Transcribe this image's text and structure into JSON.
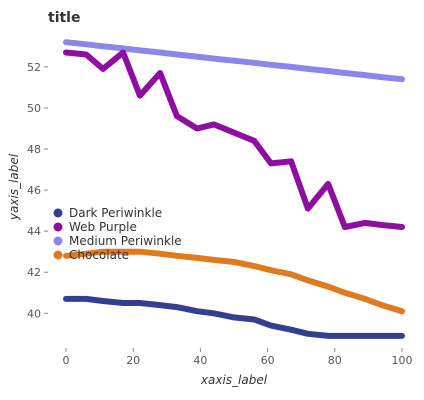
{
  "chart_data": {
    "type": "area",
    "title": "title",
    "xlabel": "xaxis_label",
    "ylabel": "yaxis_label",
    "xlim": [
      0,
      100
    ],
    "ylim": [
      38.7,
      53.6
    ],
    "x_ticks": [
      0,
      20,
      40,
      60,
      80,
      100
    ],
    "y_ticks": [
      40,
      42,
      44,
      46,
      48,
      50,
      52
    ],
    "grid": false,
    "legend": "left",
    "x": [
      0,
      6,
      11,
      17,
      22,
      28,
      33,
      39,
      44,
      50,
      56,
      61,
      67,
      72,
      78,
      83,
      89,
      94,
      100
    ],
    "series": [
      {
        "name": "Medium Periwinkle",
        "color": "#8b86e8",
        "values": [
          53.2,
          53.1,
          53.0,
          52.9,
          52.8,
          52.7,
          52.6,
          52.5,
          52.4,
          52.3,
          52.2,
          52.1,
          52.0,
          51.9,
          51.8,
          51.7,
          51.6,
          51.5,
          51.4
        ]
      },
      {
        "name": "Web Purple",
        "color": "#8e0ea0",
        "values": [
          52.7,
          52.6,
          51.9,
          52.7,
          50.6,
          51.7,
          49.6,
          49.0,
          49.2,
          48.8,
          48.4,
          47.3,
          47.4,
          45.1,
          46.3,
          44.2,
          44.4,
          44.3,
          44.2
        ]
      },
      {
        "name": "Chocolate",
        "color": "#e07a1f",
        "values": [
          42.8,
          42.9,
          43.0,
          43.0,
          43.0,
          42.9,
          42.8,
          42.7,
          42.6,
          42.5,
          42.3,
          42.1,
          41.9,
          41.6,
          41.3,
          41.0,
          40.7,
          40.4,
          40.1
        ]
      },
      {
        "name": "Dark Periwinkle",
        "color": "#33408f",
        "values": [
          40.7,
          40.7,
          40.6,
          40.5,
          40.5,
          40.4,
          40.3,
          40.1,
          40.0,
          39.8,
          39.7,
          39.4,
          39.2,
          39.0,
          38.9,
          38.9,
          38.9,
          38.9,
          38.9
        ]
      }
    ]
  }
}
